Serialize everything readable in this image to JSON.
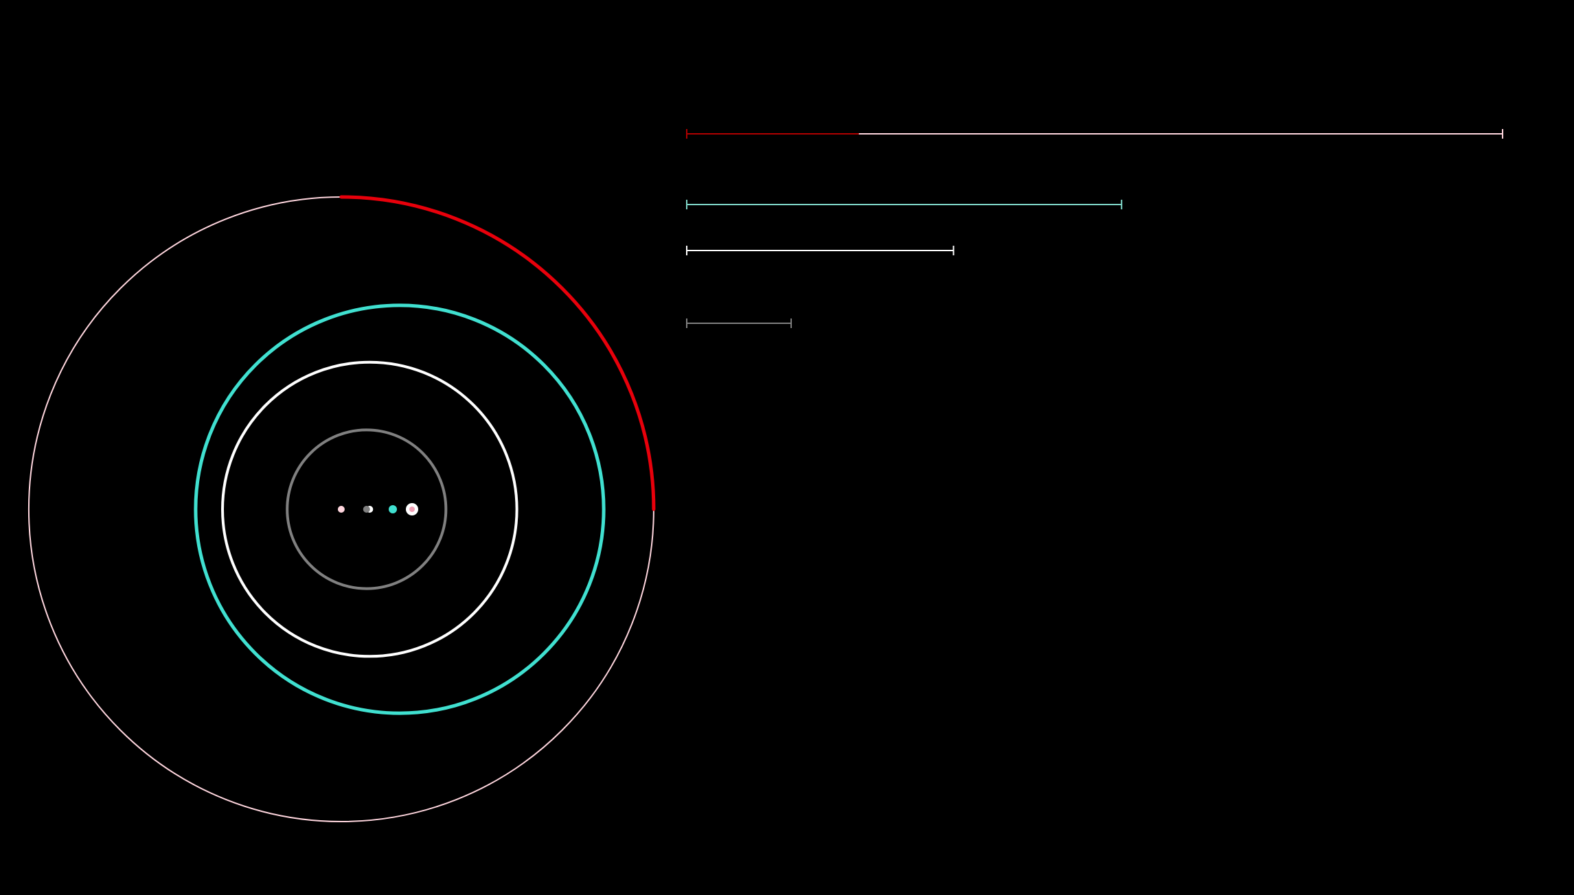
{
  "background_color": "#000000",
  "orbits": [
    {
      "name": "pink",
      "color": "#ffd6de",
      "relative_radius": 1.0,
      "progress_fraction": 0.25,
      "progress_color": "#e8000b",
      "center_offset": -0.187
    },
    {
      "name": "turquoise",
      "color": "#40e0d0",
      "relative_radius": 0.653,
      "center_offset": 0.0
    },
    {
      "name": "white",
      "color": "#ffffff",
      "relative_radius": 0.471,
      "center_offset": -0.096
    },
    {
      "name": "gray",
      "color": "#808080",
      "relative_radius": 0.254,
      "center_offset": -0.106
    }
  ],
  "bars": [
    {
      "name": "pink",
      "color": "#ffd6de",
      "fraction": 1.0,
      "progress_fraction": 0.211,
      "progress_color": "#b00000"
    },
    {
      "name": "turquoise",
      "color": "#7fd6c8",
      "fraction": 0.533
    },
    {
      "name": "white",
      "color": "#ffffff",
      "fraction": 0.327
    },
    {
      "name": "gray",
      "color": "#808080",
      "fraction": 0.128
    }
  ]
}
